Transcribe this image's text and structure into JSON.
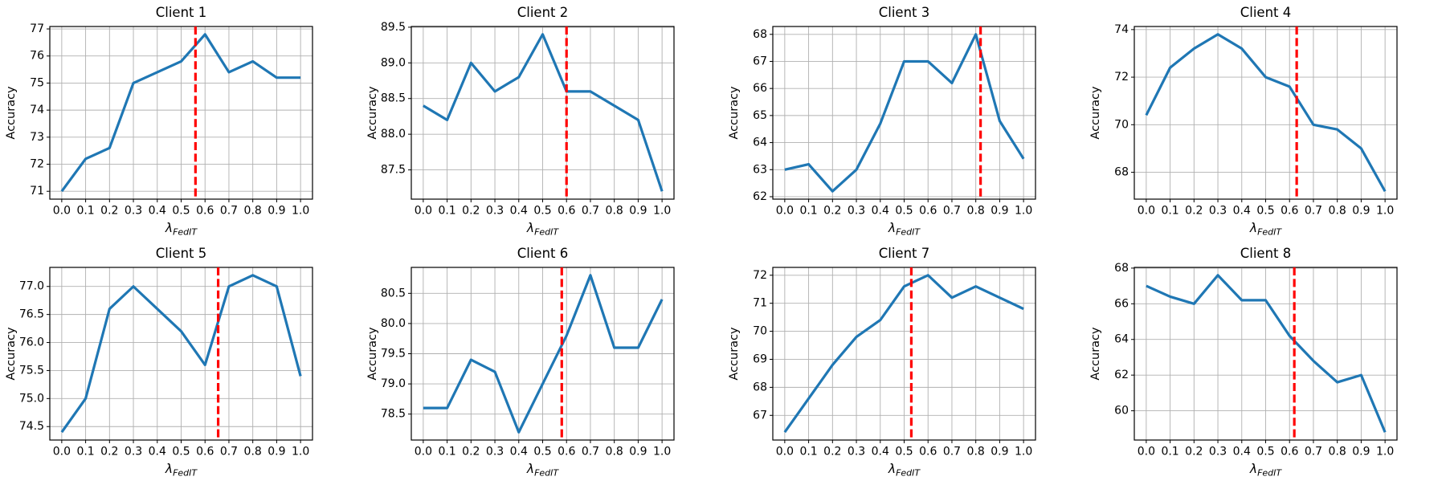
{
  "figure": {
    "ylabel": "Accuracy",
    "xlabel_symbol": "λ",
    "xlabel_subscript": "FedIT",
    "line_color": "#1f77b4",
    "vline_color": "#ff0000",
    "grid_color": "#b0b0b0",
    "spine_color": "#000000",
    "xlim": [
      -0.05,
      1.05
    ],
    "xtick_labels": [
      "0.0",
      "0.1",
      "0.2",
      "0.3",
      "0.4",
      "0.5",
      "0.6",
      "0.7",
      "0.8",
      "0.9",
      "1.0"
    ]
  },
  "chart_data": [
    {
      "type": "line",
      "title": "Client 1",
      "x": [
        0.0,
        0.1,
        0.2,
        0.3,
        0.4,
        0.5,
        0.6,
        0.7,
        0.8,
        0.9,
        1.0
      ],
      "y": [
        71.0,
        72.2,
        72.6,
        75.0,
        75.4,
        75.8,
        76.8,
        75.4,
        75.8,
        75.2,
        75.2
      ],
      "vline_x": 0.56,
      "ylim": [
        70.71,
        77.09
      ],
      "ytick_labels": [
        "71",
        "72",
        "73",
        "74",
        "75",
        "76",
        "77"
      ]
    },
    {
      "type": "line",
      "title": "Client 2",
      "x": [
        0.0,
        0.1,
        0.2,
        0.3,
        0.4,
        0.5,
        0.6,
        0.7,
        0.8,
        0.9,
        1.0
      ],
      "y": [
        88.4,
        88.2,
        89.0,
        88.6,
        88.8,
        89.4,
        88.6,
        88.6,
        88.4,
        88.2,
        87.2
      ],
      "vline_x": 0.6,
      "ylim": [
        87.09,
        89.51
      ],
      "ytick_labels": [
        "87.5",
        "88.0",
        "88.5",
        "89.0",
        "89.5"
      ]
    },
    {
      "type": "line",
      "title": "Client 3",
      "x": [
        0.0,
        0.1,
        0.2,
        0.3,
        0.4,
        0.5,
        0.6,
        0.7,
        0.8,
        0.9,
        1.0
      ],
      "y": [
        63.0,
        63.2,
        62.2,
        63.0,
        64.7,
        67.0,
        67.0,
        66.2,
        68.0,
        64.8,
        63.4
      ],
      "vline_x": 0.82,
      "ylim": [
        61.91,
        68.29
      ],
      "ytick_labels": [
        "62",
        "63",
        "64",
        "65",
        "66",
        "67",
        "68"
      ]
    },
    {
      "type": "line",
      "title": "Client 4",
      "x": [
        0.0,
        0.1,
        0.2,
        0.3,
        0.4,
        0.5,
        0.6,
        0.7,
        0.8,
        0.9,
        1.0
      ],
      "y": [
        70.4,
        72.4,
        73.2,
        73.8,
        73.2,
        72.0,
        71.6,
        70.0,
        69.8,
        69.0,
        67.2
      ],
      "vline_x": 0.63,
      "ylim": [
        66.87,
        74.13
      ],
      "ytick_labels": [
        "68",
        "70",
        "72",
        "74"
      ]
    },
    {
      "type": "line",
      "title": "Client 5",
      "x": [
        0.0,
        0.1,
        0.2,
        0.3,
        0.4,
        0.5,
        0.6,
        0.7,
        0.8,
        0.9,
        1.0
      ],
      "y": [
        74.4,
        75.0,
        76.6,
        77.0,
        76.6,
        76.2,
        75.6,
        77.0,
        77.2,
        77.0,
        75.4
      ],
      "vline_x": 0.655,
      "ylim": [
        74.26,
        77.34
      ],
      "ytick_labels": [
        "74.5",
        "75.0",
        "75.5",
        "76.0",
        "76.5",
        "77.0"
      ]
    },
    {
      "type": "line",
      "title": "Client 6",
      "x": [
        0.0,
        0.1,
        0.2,
        0.3,
        0.4,
        0.5,
        0.6,
        0.7,
        0.8,
        0.9,
        1.0
      ],
      "y": [
        78.6,
        78.6,
        79.4,
        79.2,
        78.2,
        79.0,
        79.8,
        80.8,
        79.6,
        79.6,
        80.4
      ],
      "vline_x": 0.58,
      "ylim": [
        78.07,
        80.93
      ],
      "ytick_labels": [
        "78.5",
        "79.0",
        "79.5",
        "80.0",
        "80.5"
      ]
    },
    {
      "type": "line",
      "title": "Client 7",
      "x": [
        0.0,
        0.1,
        0.2,
        0.3,
        0.4,
        0.5,
        0.6,
        0.7,
        0.8,
        0.9,
        1.0
      ],
      "y": [
        66.4,
        67.6,
        68.8,
        69.8,
        70.4,
        71.6,
        72.0,
        71.2,
        71.6,
        71.2,
        70.8
      ],
      "vline_x": 0.53,
      "ylim": [
        66.12,
        72.28
      ],
      "ytick_labels": [
        "67",
        "68",
        "69",
        "70",
        "71",
        "72"
      ]
    },
    {
      "type": "line",
      "title": "Client 8",
      "x": [
        0.0,
        0.1,
        0.2,
        0.3,
        0.4,
        0.5,
        0.6,
        0.7,
        0.8,
        0.9,
        1.0
      ],
      "y": [
        67.0,
        66.4,
        66.0,
        67.6,
        66.2,
        66.2,
        64.2,
        62.8,
        61.6,
        62.0,
        58.8
      ],
      "vline_x": 0.62,
      "ylim": [
        58.36,
        68.04
      ],
      "ytick_labels": [
        "60",
        "62",
        "64",
        "66",
        "68"
      ]
    }
  ]
}
